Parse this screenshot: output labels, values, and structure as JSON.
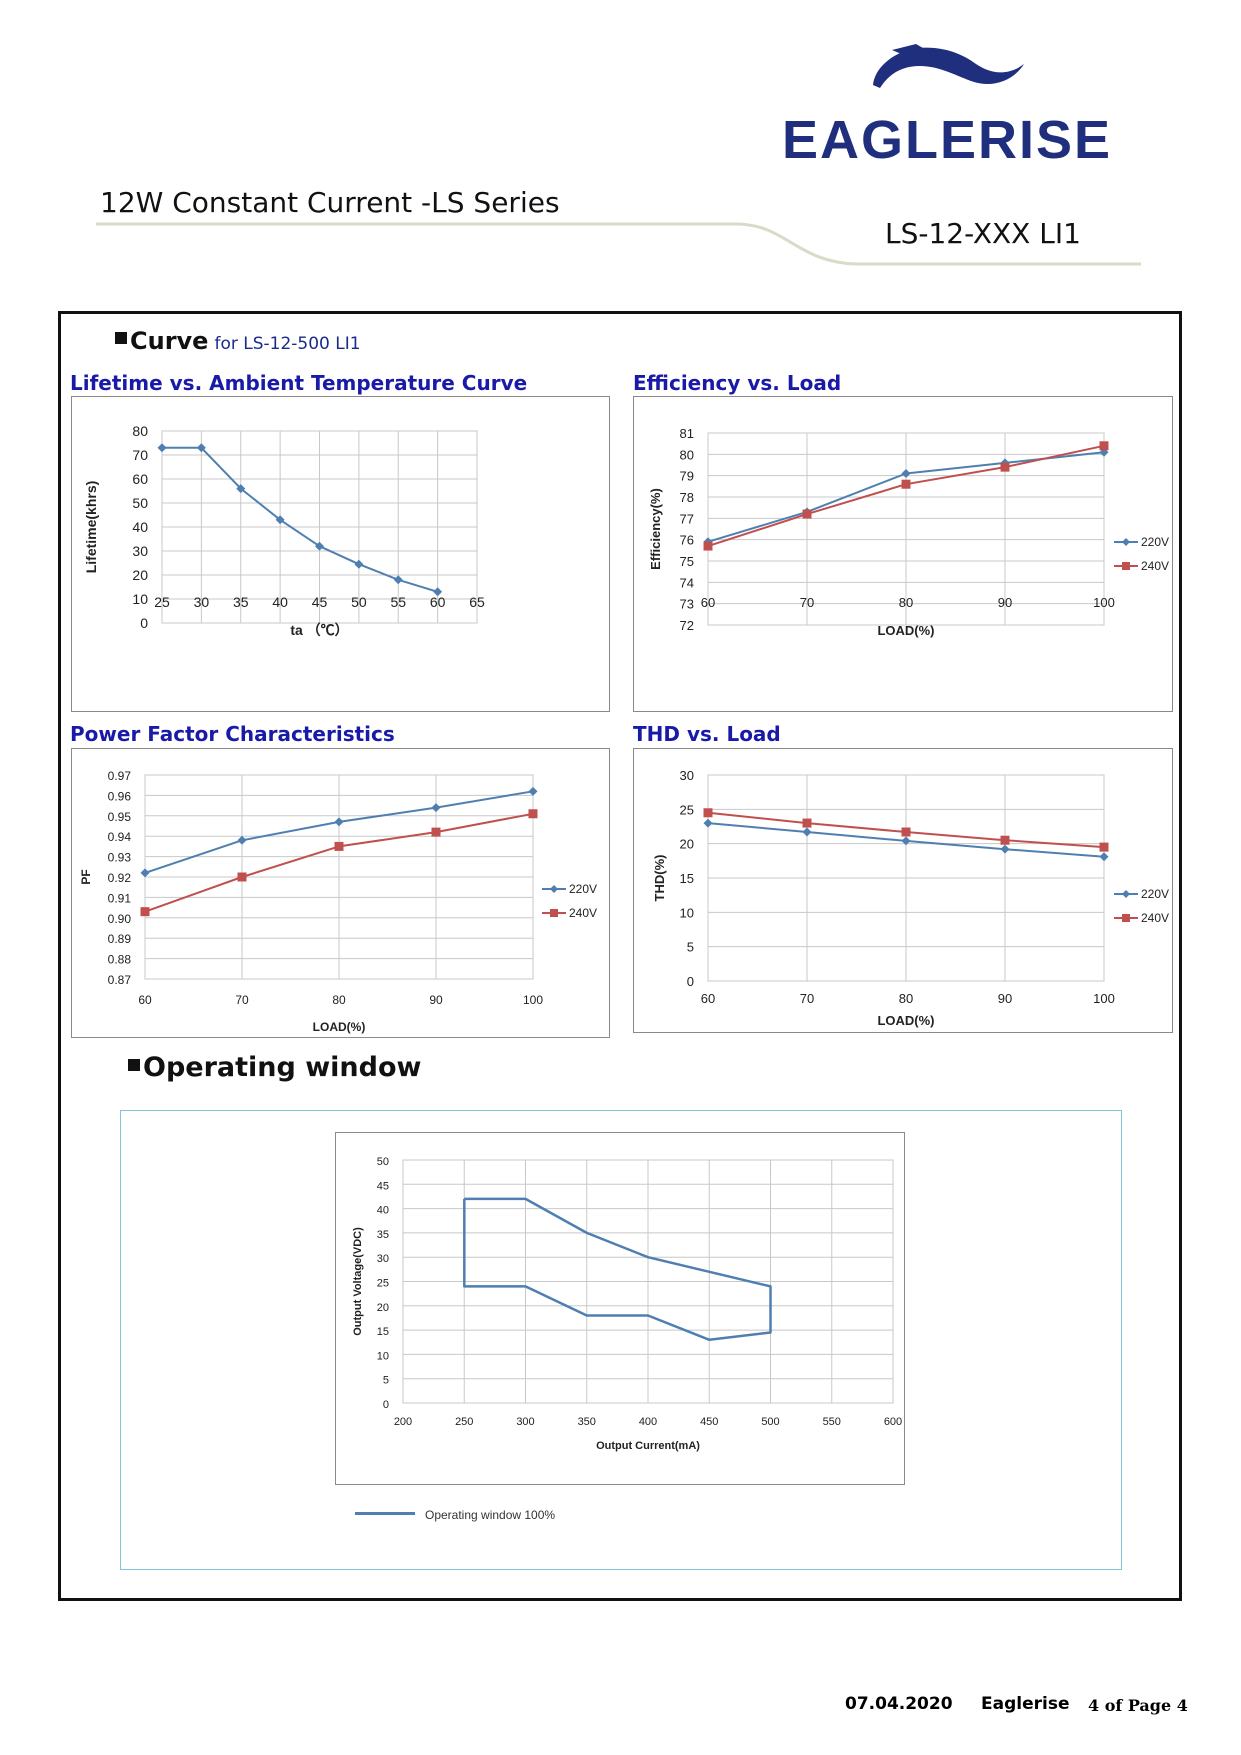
{
  "header": {
    "logo_text": "EAGLERISE",
    "series_title": "12W Constant Current -LS Series",
    "model": "LS-12-XXX LI1",
    "colors": {
      "logo": "#1f2f7e",
      "title_blue": "#1a1aa8",
      "series_220": "#4f7fb0",
      "series_240": "#c0504d"
    }
  },
  "curve_section": {
    "label": "Curve",
    "sublabel": "for LS-12-500 LI1"
  },
  "operating_section": {
    "label": "Operating window"
  },
  "chart_data": [
    {
      "id": "lifetime",
      "type": "line",
      "title": "Lifetime vs. Ambient Temperature Curve",
      "xlabel": "ta （℃）",
      "ylabel": "Lifetime(khrs)",
      "xlim": [
        25,
        65
      ],
      "ylim": [
        0,
        80
      ],
      "x_ticks": [
        25,
        30,
        35,
        40,
        45,
        50,
        55,
        60,
        65
      ],
      "y_ticks": [
        0,
        10,
        20,
        30,
        40,
        50,
        60,
        70,
        80
      ],
      "grid": true,
      "series": [
        {
          "color": "#4f7fb0",
          "marker": "diamond",
          "x": [
            25,
            30,
            35,
            40,
            45,
            50,
            55,
            60
          ],
          "y": [
            73,
            73,
            56,
            43,
            32,
            24.5,
            18,
            13
          ]
        }
      ]
    },
    {
      "id": "efficiency",
      "type": "line",
      "title": "Efficiency vs. Load",
      "xlabel": "LOAD(%)",
      "ylabel": "Efficiency(%)",
      "xlim": [
        60,
        100
      ],
      "ylim": [
        72,
        81
      ],
      "x_ticks": [
        60,
        70,
        80,
        90,
        100
      ],
      "y_ticks": [
        72,
        73,
        74,
        75,
        76,
        77,
        78,
        79,
        80,
        81
      ],
      "grid": true,
      "legend": "right",
      "series": [
        {
          "name": "220V",
          "color": "#4f7fb0",
          "marker": "diamond",
          "x": [
            60,
            70,
            80,
            90,
            100
          ],
          "y": [
            75.9,
            77.3,
            79.1,
            79.6,
            80.1
          ]
        },
        {
          "name": "240V",
          "color": "#c0504d",
          "marker": "square",
          "x": [
            60,
            70,
            80,
            90,
            100
          ],
          "y": [
            75.7,
            77.2,
            78.6,
            79.4,
            80.4
          ]
        }
      ]
    },
    {
      "id": "pf",
      "type": "line",
      "title": "Power Factor Characteristics",
      "xlabel": "LOAD(%)",
      "ylabel": "PF",
      "xlim": [
        60,
        100
      ],
      "ylim": [
        0.87,
        0.97
      ],
      "x_ticks": [
        60,
        70,
        80,
        90,
        100
      ],
      "y_ticks": [
        "0.87",
        "0.88",
        "0.89",
        "0.90",
        "0.91",
        "0.92",
        "0.93",
        "0.94",
        "0.95",
        "0.96",
        "0.97"
      ],
      "grid": true,
      "legend": "right",
      "series": [
        {
          "name": "220V",
          "color": "#4f7fb0",
          "marker": "diamond",
          "x": [
            60,
            70,
            80,
            90,
            100
          ],
          "y": [
            0.922,
            0.938,
            0.947,
            0.954,
            0.962
          ]
        },
        {
          "name": "240V",
          "color": "#c0504d",
          "marker": "square",
          "x": [
            60,
            70,
            80,
            90,
            100
          ],
          "y": [
            0.903,
            0.92,
            0.935,
            0.942,
            0.951
          ]
        }
      ]
    },
    {
      "id": "thd",
      "type": "line",
      "title": "THD vs. Load",
      "xlabel": "LOAD(%)",
      "ylabel": "THD(%)",
      "xlim": [
        60,
        100
      ],
      "ylim": [
        0,
        30
      ],
      "x_ticks": [
        60,
        70,
        80,
        90,
        100
      ],
      "y_ticks": [
        0,
        5,
        10,
        15,
        20,
        25,
        30
      ],
      "grid": true,
      "legend": "right",
      "series": [
        {
          "name": "220V",
          "color": "#4f7fb0",
          "marker": "diamond",
          "x": [
            60,
            70,
            80,
            90,
            100
          ],
          "y": [
            23,
            21.7,
            20.4,
            19.2,
            18.1
          ]
        },
        {
          "name": "240V",
          "color": "#c0504d",
          "marker": "square",
          "x": [
            60,
            70,
            80,
            90,
            100
          ],
          "y": [
            24.5,
            23,
            21.7,
            20.5,
            19.5
          ]
        }
      ]
    },
    {
      "id": "operating",
      "type": "line",
      "title": "",
      "xlabel": "Output Current(mA)",
      "ylabel": "Output Voltage(VDC)",
      "xlim": [
        200,
        600
      ],
      "ylim": [
        0,
        50
      ],
      "x_ticks": [
        200,
        250,
        300,
        350,
        400,
        450,
        500,
        550,
        600
      ],
      "y_ticks": [
        0,
        5,
        10,
        15,
        20,
        25,
        30,
        35,
        40,
        45,
        50
      ],
      "grid": true,
      "legend": "bottom",
      "series": [
        {
          "name": "Operating window 100%",
          "color": "#4f7fb0",
          "marker": "none",
          "x": [
            250,
            300,
            350,
            400,
            450,
            500,
            500,
            450,
            400,
            350,
            300,
            250,
            250
          ],
          "y": [
            42,
            42,
            35,
            30,
            27,
            24,
            14.5,
            13,
            18,
            18,
            24,
            24,
            42
          ]
        }
      ]
    }
  ],
  "footer": {
    "date": "07.04.2020",
    "company": "Eaglerise",
    "page": "4 of Page 4"
  }
}
